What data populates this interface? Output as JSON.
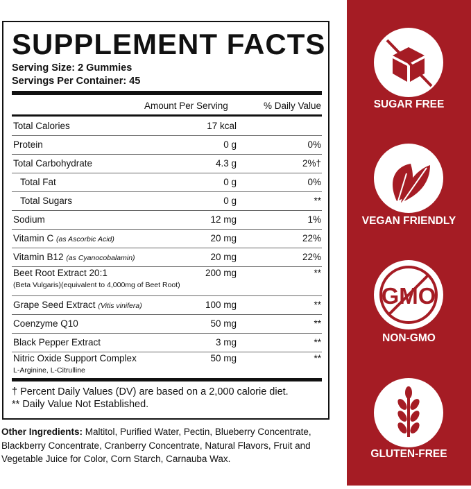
{
  "header": {
    "title": "SUPPLEMENT FACTS",
    "serving_size": "Serving Size: 2 Gummies",
    "servings_per_container": "Servings Per Container: 45"
  },
  "table": {
    "columns": [
      "Amount Per Serving",
      "% Daily Value"
    ],
    "rows": [
      {
        "name": "Total Calories",
        "amount": "17 kcal"
      },
      {
        "name": "Protein",
        "amount": "0 g",
        "dv": "0%"
      },
      {
        "name": "Total Carbohydrate",
        "amount": "4.3 g",
        "dv": "2%†",
        "children": [
          {
            "name": "Total Fat",
            "amount": "0 g",
            "dv": "0%"
          },
          {
            "name": "Total Sugars",
            "amount": "0 g",
            "dv": "**"
          }
        ]
      },
      {
        "name": "Sodium",
        "amount": "12 mg",
        "dv": "1%"
      },
      {
        "name": "Vitamin C",
        "note": "(as Ascorbic Acid)",
        "amount": "20 mg",
        "dv": "22%"
      },
      {
        "name": "Vitamin B12",
        "note": "(as Cyanocobalamin)",
        "amount": "20 mg",
        "dv": "22%"
      },
      {
        "name": "Beet Root Extract 20:1",
        "detail": "(Beta Vulgaris)(equivalent to 4,000mg of Beet Root)",
        "amount": "200 mg",
        "dv": "**"
      },
      {
        "name": "Grape Seed Extract",
        "note": "(Vitis vinifera)",
        "amount": "100 mg",
        "dv": "**"
      },
      {
        "name": "Coenzyme Q10",
        "amount": "50 mg",
        "dv": "**"
      },
      {
        "name": "Black Pepper Extract",
        "amount": "3 mg",
        "dv": "**"
      },
      {
        "name": "Nitric Oxide Support Complex",
        "detail": "L-Arginine, L-Citrulline",
        "amount": "50 mg",
        "dv": "**"
      }
    ]
  },
  "footnotes": [
    "† Percent Daily Values (DV) are based on a 2,000 calorie diet.",
    "** Daily Value Not Established."
  ],
  "other_ingredients": {
    "label": "Other Ingredients:",
    "text": "Maltitol, Purified Water, Pectin, Blueberry Concentrate, Blackberry Concentrate, Cranberry Concentrate, Natural Flavors, Fruit and Vegetable Juice for Color, Corn Starch, Carnauba Wax."
  },
  "badges": [
    {
      "label": "SUGAR FREE"
    },
    {
      "label": "VEGAN FRIENDLY"
    },
    {
      "label": "NON-GMO",
      "icon_text": "GMO"
    },
    {
      "label": "GLUTEN-FREE"
    }
  ]
}
